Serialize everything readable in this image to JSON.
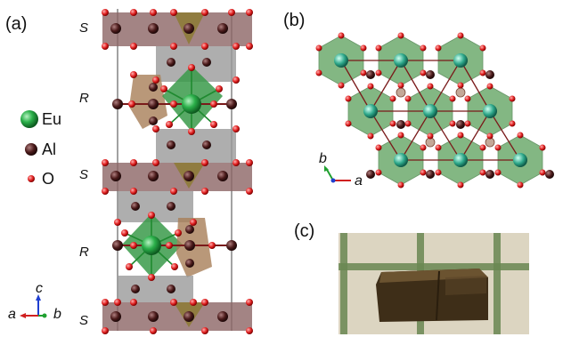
{
  "panels": {
    "a": "(a)",
    "b": "(b)",
    "c": "(c)"
  },
  "layers": [
    "S",
    "R",
    "S",
    "R",
    "S"
  ],
  "legend": [
    {
      "label": "Eu",
      "color": "#2bb04a"
    },
    {
      "label": "Al",
      "color": "#4a1a1a"
    },
    {
      "label": "O",
      "color": "#e02020"
    }
  ],
  "axes_a": {
    "c": "c",
    "a": "a",
    "b": "b"
  },
  "axes_b": {
    "b": "b",
    "a": "a"
  },
  "colors": {
    "eu": "#2bb04a",
    "al": "#4a1a1a",
    "o": "#e02020",
    "grid": "#3f6a2a",
    "sample": "#4a3a20"
  }
}
